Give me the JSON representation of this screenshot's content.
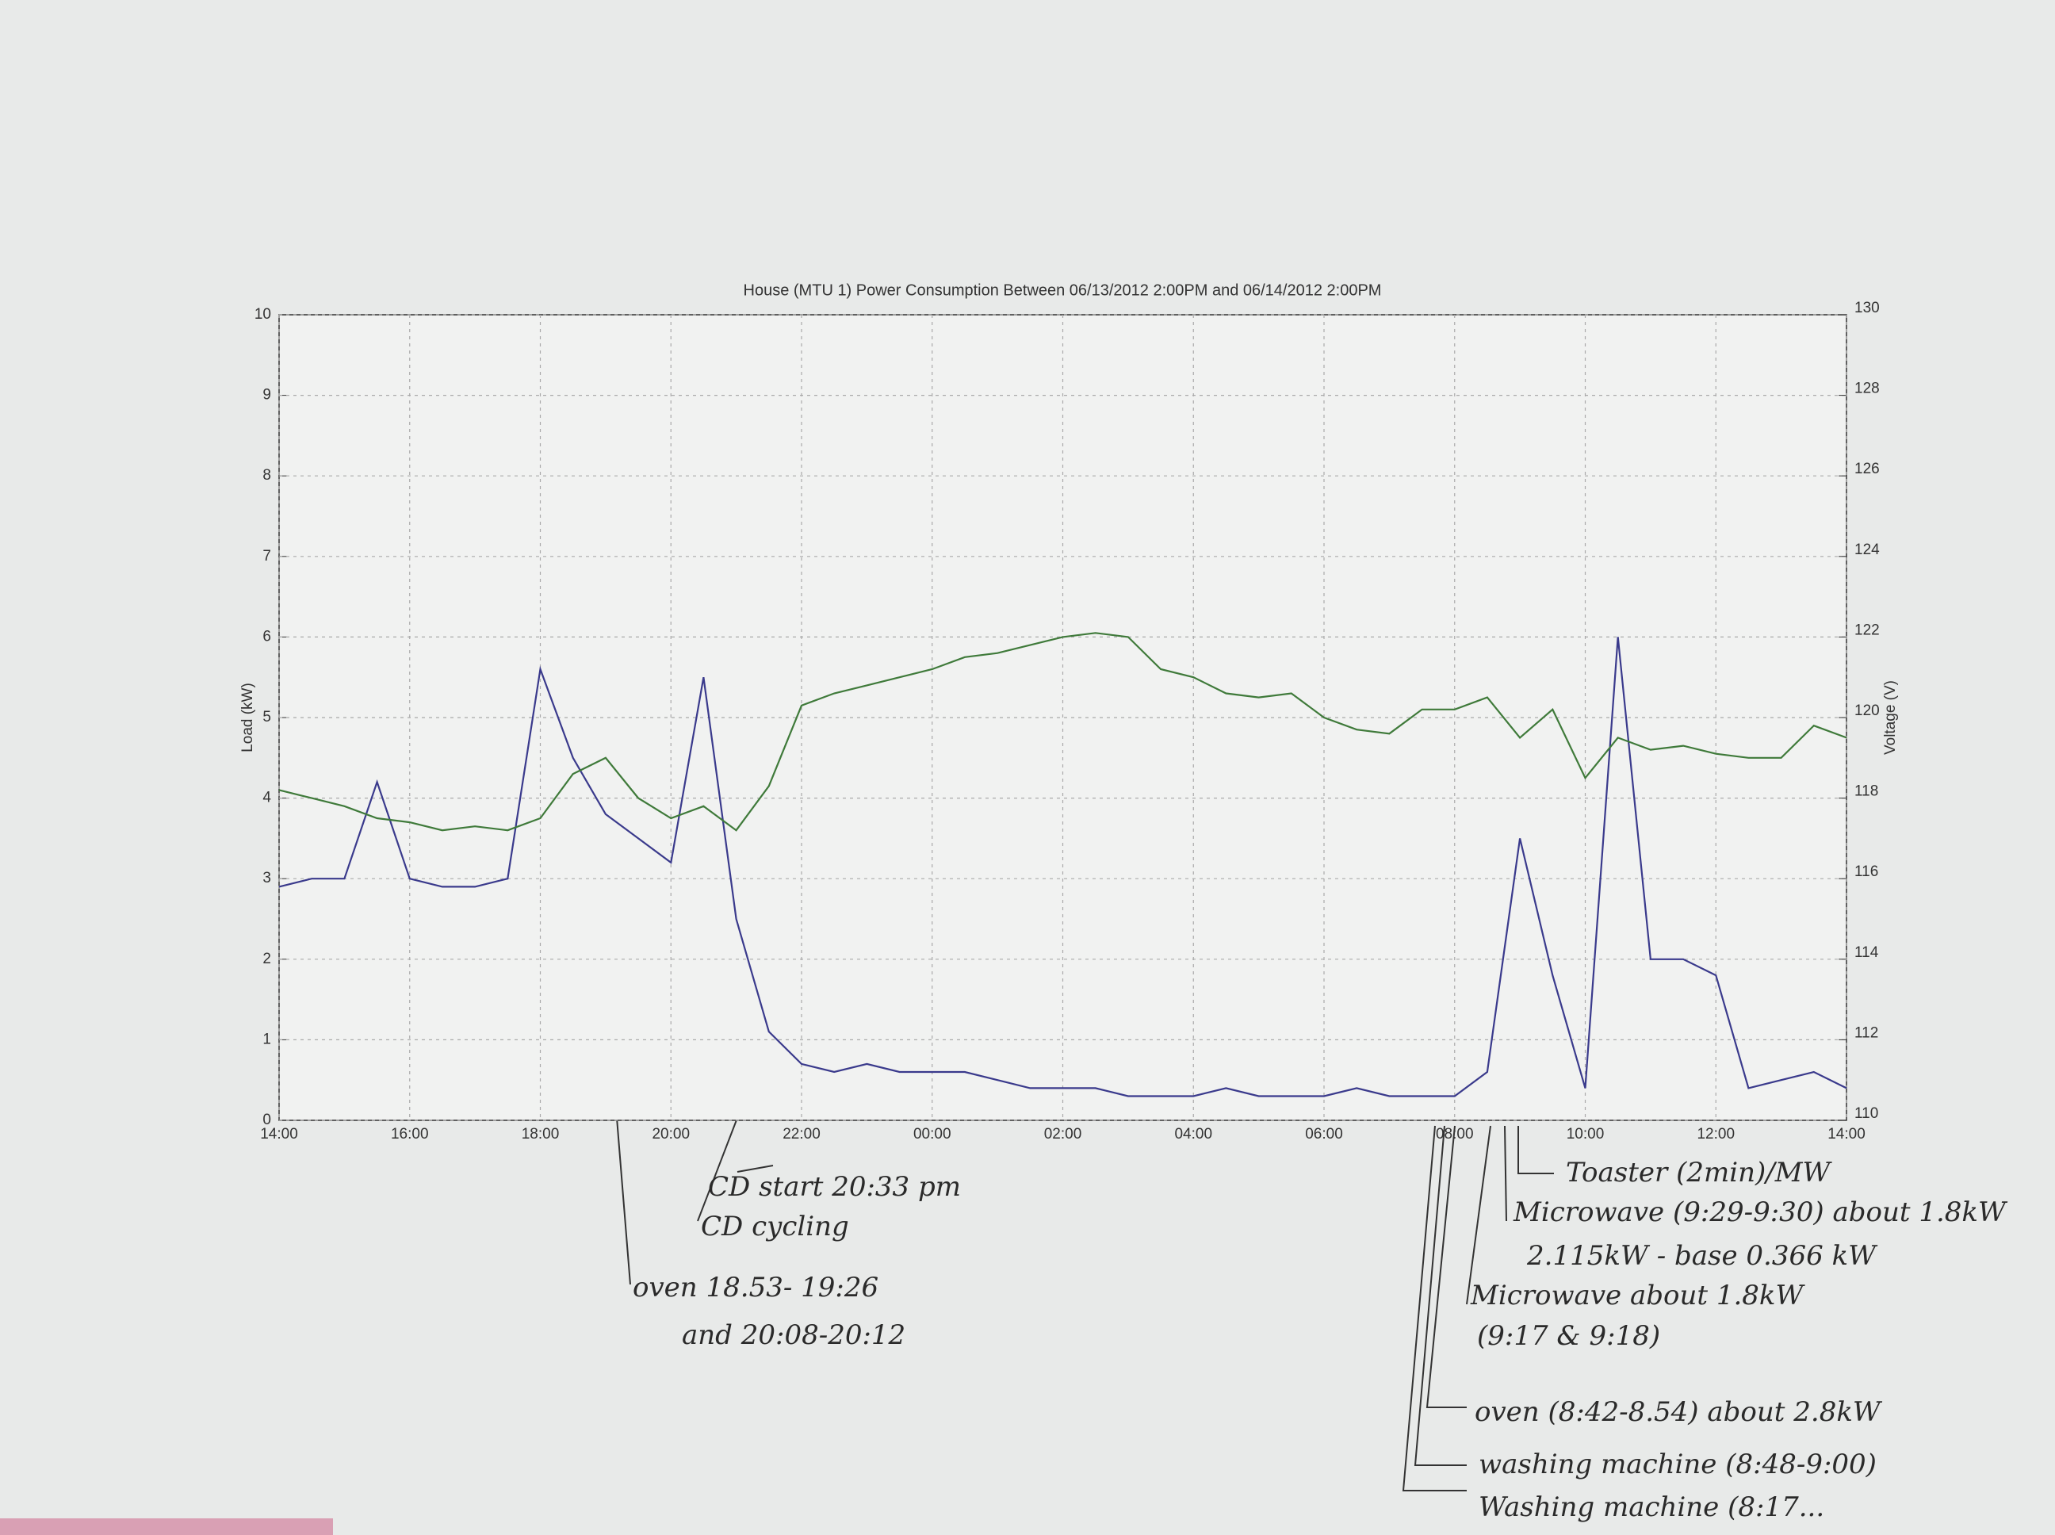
{
  "chart_data": {
    "type": "line",
    "title": "House (MTU 1) Power Consumption Between 06/13/2012 2:00PM and 06/14/2012 2:00PM",
    "y_label": "Load (kW)",
    "y2_label": "Voltage (V)",
    "categories": [
      "14:00",
      null,
      null,
      null,
      "16:00",
      null,
      null,
      null,
      "18:00",
      null,
      null,
      null,
      "20:00",
      null,
      null,
      null,
      "22:00",
      null,
      null,
      null,
      "00:00",
      null,
      null,
      null,
      "02:00",
      null,
      null,
      null,
      "04:00",
      null,
      null,
      null,
      "06:00",
      null,
      null,
      null,
      "08:00",
      null,
      null,
      null,
      "10:00",
      null,
      null,
      null,
      "12:00",
      null,
      null,
      null,
      "14:00"
    ],
    "series": [
      {
        "name": "Load",
        "color": "#3a3a8c",
        "values": [
          2.9,
          3.0,
          3.0,
          4.2,
          3.0,
          2.9,
          2.9,
          3.0,
          5.6,
          4.5,
          3.8,
          3.5,
          3.2,
          5.5,
          2.5,
          1.1,
          0.7,
          0.6,
          0.7,
          0.6,
          0.6,
          0.6,
          0.5,
          0.4,
          0.4,
          0.4,
          0.3,
          0.3,
          0.3,
          0.4,
          0.3,
          0.3,
          0.3,
          0.4,
          0.3,
          0.3,
          0.3,
          0.6,
          3.5,
          1.8,
          0.4,
          6.0,
          2.0,
          2.0,
          1.8,
          0.4,
          0.5,
          0.6,
          0.4
        ]
      },
      {
        "name": "Voltage",
        "color": "#3f7a3a",
        "axis": "y2",
        "values": [
          118.2,
          118.0,
          117.8,
          117.5,
          117.4,
          117.2,
          117.3,
          117.2,
          117.5,
          118.6,
          119.0,
          118.0,
          117.5,
          117.8,
          117.2,
          118.3,
          120.3,
          120.6,
          120.8,
          121.0,
          121.2,
          121.5,
          121.6,
          121.8,
          122.0,
          122.1,
          122.0,
          121.2,
          121.0,
          120.6,
          120.5,
          120.6,
          120.0,
          119.7,
          119.6,
          120.2,
          120.2,
          120.5,
          119.5,
          120.2,
          118.5,
          119.5,
          119.2,
          119.3,
          119.1,
          119.0,
          119.0,
          119.8,
          119.5
        ]
      }
    ],
    "ylim": [
      0,
      10
    ],
    "yticks": [
      0,
      1,
      2,
      3,
      4,
      5,
      6,
      7,
      8,
      9,
      10
    ],
    "y2lim": [
      110,
      130
    ],
    "y2ticks": [
      110,
      112,
      114,
      116,
      118,
      120,
      122,
      124,
      126,
      128,
      130
    ],
    "grid": true,
    "annotations": [
      "CD start 20:33 pm",
      "CD cycling",
      "oven 18.53- 19:26",
      "and 20:08-20:12",
      "Toaster (2min)/MW",
      "Microwave (9:29-9:30) about 1.8kW",
      "2.115kW - base 0.366 kW",
      "Microwave about 1.8kW",
      "(9:17 & 9:18)",
      "oven (8:42-8.54) about 2.8kW",
      "washing machine (8:48-9:00)",
      "Washing machine (8:17..."
    ]
  }
}
